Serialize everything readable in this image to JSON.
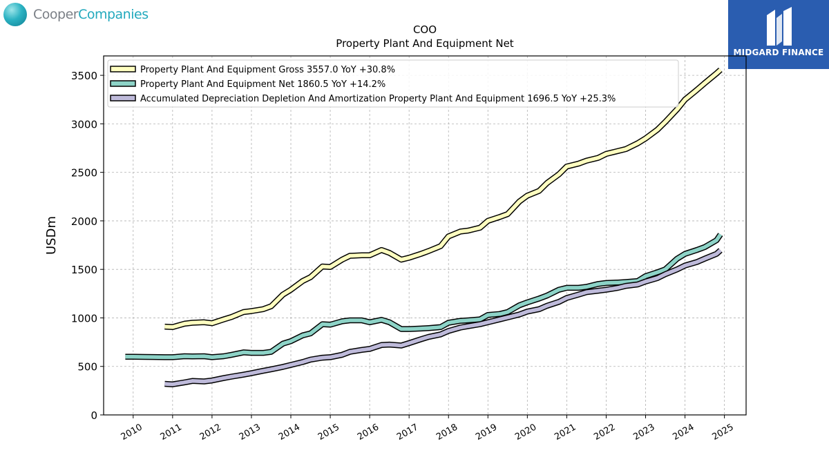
{
  "branding": {
    "company_logo_part1": "Cooper",
    "company_logo_part2": "Companies",
    "publisher": "MIDGARD FINANCE"
  },
  "chart_data": {
    "type": "line",
    "title": "COO",
    "subtitle": "Property Plant And Equipment Net",
    "ylabel": "USDm",
    "xlabel": "",
    "ylim": [
      0,
      3700
    ],
    "xlim": [
      2009.25,
      2025.55
    ],
    "yticks": [
      0,
      500,
      1000,
      1500,
      2000,
      2500,
      3000,
      3500
    ],
    "xticks": [
      "2010",
      "2011",
      "2012",
      "2013",
      "2014",
      "2015",
      "2016",
      "2017",
      "2018",
      "2019",
      "2020",
      "2021",
      "2022",
      "2023",
      "2024",
      "2025"
    ],
    "grid": true,
    "legend_position": "top-left",
    "series": [
      {
        "name": "Property Plant And Equipment Gross",
        "legend": "Property Plant And Equipment Gross  3557.0 YoY +30.8%",
        "color": "#ffffc0",
        "x": [
          2010.8,
          2011.0,
          2011.3,
          2011.5,
          2011.8,
          2012.0,
          2012.3,
          2012.5,
          2012.8,
          2013.0,
          2013.3,
          2013.5,
          2013.8,
          2014.0,
          2014.3,
          2014.5,
          2014.8,
          2015.0,
          2015.3,
          2015.5,
          2015.8,
          2016.0,
          2016.3,
          2016.5,
          2016.8,
          2017.0,
          2017.3,
          2017.5,
          2017.8,
          2018.0,
          2018.3,
          2018.5,
          2018.8,
          2019.0,
          2019.3,
          2019.5,
          2019.8,
          2020.0,
          2020.3,
          2020.5,
          2020.8,
          2021.0,
          2021.3,
          2021.5,
          2021.8,
          2022.0,
          2022.3,
          2022.5,
          2022.8,
          2023.0,
          2023.3,
          2023.5,
          2023.8,
          2024.0,
          2024.3,
          2024.5,
          2024.8,
          2024.9
        ],
        "y": [
          910,
          905,
          940,
          950,
          955,
          945,
          985,
          1010,
          1060,
          1070,
          1090,
          1120,
          1240,
          1290,
          1380,
          1420,
          1530,
          1525,
          1600,
          1640,
          1645,
          1645,
          1700,
          1670,
          1600,
          1620,
          1660,
          1690,
          1740,
          1840,
          1890,
          1900,
          1930,
          2000,
          2040,
          2070,
          2200,
          2260,
          2310,
          2390,
          2480,
          2560,
          2590,
          2620,
          2650,
          2690,
          2720,
          2740,
          2800,
          2850,
          2940,
          3020,
          3150,
          3250,
          3350,
          3420,
          3520,
          3557
        ]
      },
      {
        "name": "Property Plant And Equipment Net",
        "legend": "Property Plant And Equipment Net  1860.5 YoY +14.2%",
        "color": "#8dd3c7",
        "x": [
          2009.8,
          2010.0,
          2010.3,
          2010.5,
          2010.8,
          2011.0,
          2011.3,
          2011.5,
          2011.8,
          2012.0,
          2012.3,
          2012.5,
          2012.8,
          2013.0,
          2013.3,
          2013.5,
          2013.8,
          2014.0,
          2014.3,
          2014.5,
          2014.8,
          2015.0,
          2015.3,
          2015.5,
          2015.8,
          2016.0,
          2016.3,
          2016.5,
          2016.8,
          2017.0,
          2017.3,
          2017.5,
          2017.8,
          2018.0,
          2018.3,
          2018.5,
          2018.8,
          2019.0,
          2019.3,
          2019.5,
          2019.8,
          2020.0,
          2020.3,
          2020.5,
          2020.8,
          2021.0,
          2021.3,
          2021.5,
          2021.8,
          2022.0,
          2022.3,
          2022.5,
          2022.8,
          2023.0,
          2023.3,
          2023.5,
          2023.8,
          2024.0,
          2024.3,
          2024.5,
          2024.8,
          2024.9
        ],
        "y": [
          600,
          600,
          598,
          597,
          595,
          595,
          605,
          603,
          605,
          595,
          605,
          620,
          645,
          640,
          640,
          650,
          735,
          760,
          820,
          840,
          935,
          930,
          965,
          975,
          975,
          955,
          980,
          955,
          885,
          885,
          890,
          895,
          905,
          950,
          970,
          975,
          985,
          1030,
          1040,
          1060,
          1130,
          1160,
          1200,
          1230,
          1290,
          1310,
          1310,
          1320,
          1350,
          1360,
          1365,
          1370,
          1380,
          1430,
          1470,
          1500,
          1610,
          1660,
          1700,
          1730,
          1800,
          1860
        ]
      },
      {
        "name": "Accumulated Depreciation Depletion And Amortization Property Plant And Equipment",
        "legend": "Accumulated Depreciation Depletion And Amortization Property Plant And Equipment  1696.5 YoY +25.3%",
        "color": "#bebada",
        "x": [
          2010.8,
          2011.0,
          2011.3,
          2011.5,
          2011.8,
          2012.0,
          2012.3,
          2012.5,
          2012.8,
          2013.0,
          2013.3,
          2013.5,
          2013.8,
          2014.0,
          2014.3,
          2014.5,
          2014.8,
          2015.0,
          2015.3,
          2015.5,
          2015.8,
          2016.0,
          2016.3,
          2016.5,
          2016.8,
          2017.0,
          2017.3,
          2017.5,
          2017.8,
          2018.0,
          2018.3,
          2018.5,
          2018.8,
          2019.0,
          2019.3,
          2019.5,
          2019.8,
          2020.0,
          2020.3,
          2020.5,
          2020.8,
          2021.0,
          2021.3,
          2021.5,
          2021.8,
          2022.0,
          2022.3,
          2022.5,
          2022.8,
          2023.0,
          2023.3,
          2023.5,
          2023.8,
          2024.0,
          2024.3,
          2024.5,
          2024.8,
          2024.9
        ],
        "y": [
          320,
          315,
          335,
          350,
          345,
          355,
          380,
          395,
          415,
          430,
          455,
          470,
          495,
          515,
          545,
          570,
          590,
          595,
          620,
          650,
          670,
          680,
          720,
          725,
          715,
          740,
          780,
          805,
          830,
          865,
          900,
          915,
          935,
          955,
          985,
          1005,
          1035,
          1065,
          1090,
          1125,
          1165,
          1205,
          1240,
          1265,
          1280,
          1290,
          1310,
          1330,
          1345,
          1375,
          1410,
          1450,
          1500,
          1540,
          1575,
          1610,
          1660,
          1696
        ]
      }
    ]
  }
}
